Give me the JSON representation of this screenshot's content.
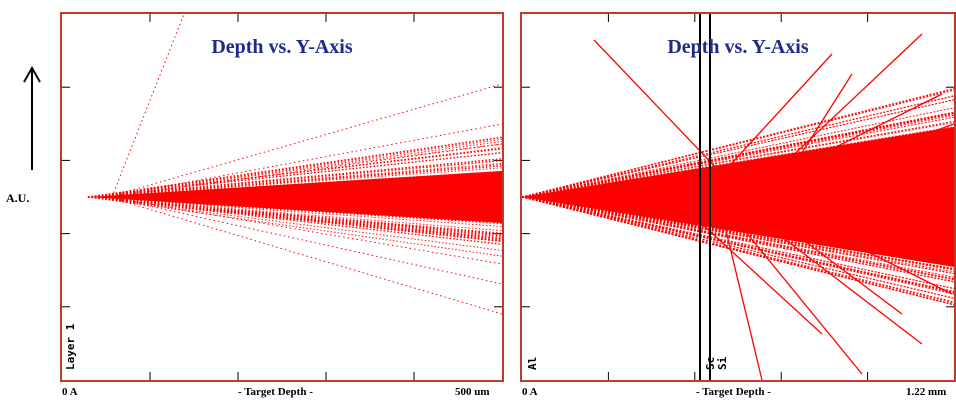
{
  "y_axis_label": "A.U.",
  "chart_data": [
    {
      "type": "scatter",
      "title": "Depth vs. Y-Axis",
      "xlabel": "- Target Depth -",
      "x_min_label": "0 A",
      "x_max_label": "500 um",
      "layer_labels": [
        "Layer 1"
      ],
      "trace_color": "#ff0000",
      "frame_color": "#c0392b",
      "title_color": "#1f2a8a",
      "note": "ion trajectories fanning out from origin"
    },
    {
      "type": "scatter",
      "title": "Depth vs. Y-Axis",
      "xlabel": "- Target Depth -",
      "x_min_label": "0 A",
      "x_max_label": "1.22 mm",
      "layer_labels": [
        "Al",
        "Sc",
        "Si"
      ],
      "trace_color": "#ff0000",
      "frame_color": "#c0392b",
      "title_color": "#1f2a8a",
      "note": "ion trajectories with layer boundaries"
    }
  ]
}
